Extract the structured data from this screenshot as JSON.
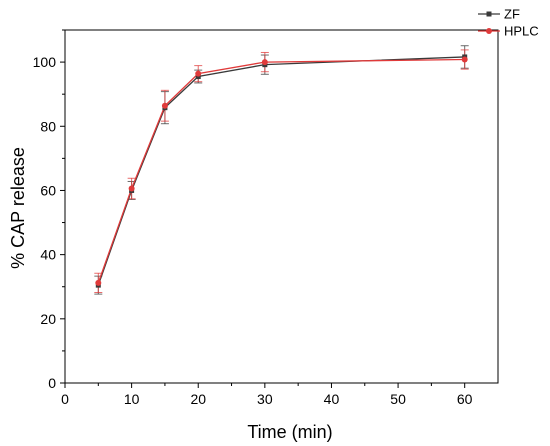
{
  "chart_data": {
    "type": "line",
    "title": "",
    "xlabel": "Time (min)",
    "ylabel": "% CAP release",
    "xlim": [
      0,
      65
    ],
    "ylim": [
      0,
      110
    ],
    "xticks": [
      0,
      10,
      20,
      30,
      40,
      50,
      60
    ],
    "yticks": [
      0,
      20,
      40,
      60,
      80,
      100
    ],
    "x": [
      5,
      10,
      15,
      20,
      30,
      60
    ],
    "grid": false,
    "legend_position": "top-right",
    "series": [
      {
        "name": "ZF",
        "color": "#3a3a3a",
        "marker": "square",
        "values": [
          30.5,
          60.0,
          85.8,
          95.5,
          99.2,
          101.6
        ],
        "errors": [
          2.8,
          2.8,
          5.0,
          2.0,
          3.0,
          3.5
        ]
      },
      {
        "name": "HPLC",
        "color": "#e03a3a",
        "marker": "circle",
        "values": [
          31.2,
          60.6,
          86.4,
          96.4,
          100.0,
          100.8
        ],
        "errors": [
          3.0,
          3.2,
          4.8,
          2.5,
          3.0,
          3.0
        ]
      }
    ]
  }
}
